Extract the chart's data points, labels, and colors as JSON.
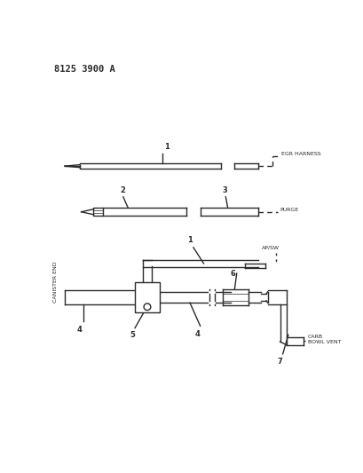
{
  "title": "8125 3900 A",
  "bg_color": "#ffffff",
  "line_color": "#2a2a2a",
  "text_color": "#2a2a2a",
  "canister_end_label": "CANISTER END",
  "egr_label": "EGR HARNESS",
  "purge_label": "PURGE",
  "apsw_label": "AP/SW",
  "carb_label1": "CARB",
  "carb_label2": "BOWL VENT"
}
